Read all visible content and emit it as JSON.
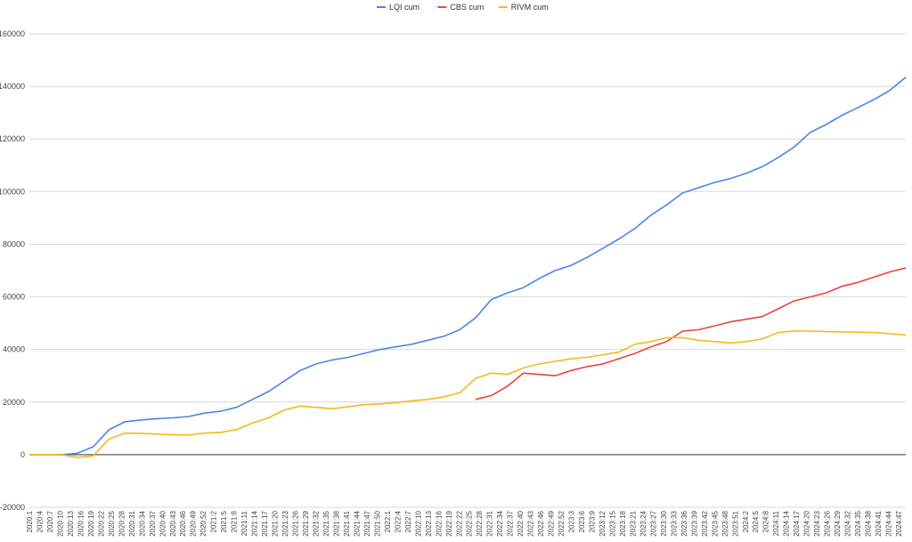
{
  "chart_data": {
    "type": "line",
    "title": "",
    "xlabel": "",
    "ylabel": "",
    "ylim": [
      -20000,
      160000
    ],
    "y_ticks": [
      -20000,
      0,
      20000,
      40000,
      60000,
      80000,
      100000,
      120000,
      140000,
      160000
    ],
    "grid": true,
    "legend_position": "top-center",
    "x_tick_labels": [
      "2020:1",
      "2020:4",
      "2020:7",
      "2020:10",
      "2020:13",
      "2020:16",
      "2020:19",
      "2020:22",
      "2020:25",
      "2020:28",
      "2020:31",
      "2020:34",
      "2020:37",
      "2020:40",
      "2020:43",
      "2020:46",
      "2020:49",
      "2020:52",
      "2021:2",
      "2021:5",
      "2021:8",
      "2021:11",
      "2021:14",
      "2021:17",
      "2021:20",
      "2021:23",
      "2021:26",
      "2021:29",
      "2021:32",
      "2021:35",
      "2021:38",
      "2021:41",
      "2021:44",
      "2021:47",
      "2021:50",
      "2022:1",
      "2022:4",
      "2022:7",
      "2022:10",
      "2022:13",
      "2022:16",
      "2022:19",
      "2022:22",
      "2022:25",
      "2022:28",
      "2022:31",
      "2022:34",
      "2022:37",
      "2022:40",
      "2022:43",
      "2022:46",
      "2022:49",
      "2022:52",
      "2023:3",
      "2023:6",
      "2023:9",
      "2023:12",
      "2023:15",
      "2023:18",
      "2023:21",
      "2023:24",
      "2023:27",
      "2023:30",
      "2023:33",
      "2023:36",
      "2023:39",
      "2023:42",
      "2023:45",
      "2023:48",
      "2023:51",
      "2024:2",
      "2024:5",
      "2024:8",
      "2024:11",
      "2024:14",
      "2024:17",
      "2024:20",
      "2024:23",
      "2024:26",
      "2024:29",
      "2024:32",
      "2024:35",
      "2024:38",
      "2024:41",
      "2024:44",
      "2024:47"
    ],
    "series": [
      {
        "name": "LQI cum",
        "color": "#4a86e8",
        "values": [
          0,
          0,
          0,
          500,
          3000,
          9500,
          12500,
          13200,
          13700,
          14000,
          14500,
          15800,
          16500,
          18000,
          21000,
          24000,
          28000,
          32000,
          34500,
          36000,
          37000,
          38500,
          40000,
          41000,
          42000,
          43500,
          45000,
          47500,
          52000,
          59000,
          61500,
          63500,
          67000,
          70000,
          72000,
          75000,
          78500,
          82000,
          86000,
          91000,
          95000,
          99500,
          101500,
          103500,
          105000,
          107000,
          109500,
          113000,
          117000,
          122500,
          125500,
          129000,
          132000,
          135000,
          138500,
          143500
        ]
      },
      {
        "name": "CBS cum",
        "color": "#e8453c",
        "values": [
          null,
          null,
          null,
          null,
          null,
          null,
          null,
          null,
          null,
          null,
          null,
          null,
          null,
          null,
          null,
          null,
          null,
          null,
          null,
          null,
          null,
          null,
          null,
          null,
          null,
          null,
          null,
          null,
          21000,
          22500,
          26000,
          31000,
          30500,
          30000,
          32000,
          33500,
          34500,
          36500,
          38500,
          41000,
          43000,
          47000,
          47500,
          49000,
          50500,
          51500,
          52500,
          55500,
          58500,
          60000,
          61500,
          64000,
          65500,
          67500,
          69500,
          71000
        ]
      },
      {
        "name": "RIVM cum",
        "color": "#f6b81a",
        "values": [
          0,
          0,
          0,
          -1000,
          -500,
          6000,
          8200,
          8100,
          7800,
          7600,
          7500,
          8200,
          8500,
          9500,
          12000,
          14000,
          17000,
          18500,
          18000,
          17500,
          18200,
          19000,
          19300,
          19800,
          20500,
          21000,
          22000,
          23500,
          29000,
          31000,
          30500,
          33000,
          34500,
          35500,
          36500,
          37000,
          38000,
          39000,
          42000,
          43000,
          44500,
          44500,
          43500,
          43000,
          42500,
          43000,
          44000,
          46500,
          47000,
          47000,
          46800,
          46700,
          46600,
          46500,
          46000,
          45500
        ]
      }
    ]
  }
}
